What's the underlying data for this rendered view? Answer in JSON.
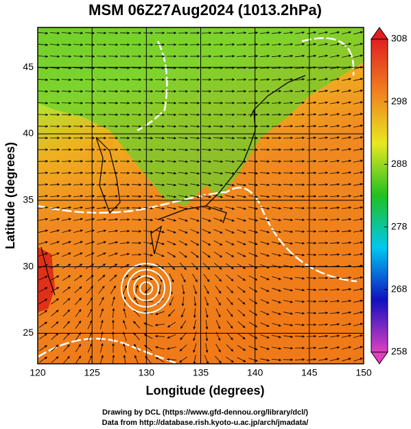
{
  "chart_data": {
    "type": "map",
    "title": "MSM 06Z27Aug2024 (1013.2hPa)",
    "xlabel": "Longitude (degrees)",
    "ylabel": "Latitude  (degrees)",
    "xlim": [
      120,
      150
    ],
    "xticks": [
      120,
      125,
      130,
      135,
      140,
      145,
      150
    ],
    "ylim": [
      22.7,
      48
    ],
    "yticks": [
      25,
      30,
      35,
      40,
      45
    ],
    "grid": true,
    "colorbar": {
      "lim": [
        258,
        308
      ],
      "ticks": [
        258,
        268,
        278,
        288,
        298,
        308
      ],
      "colors": [
        "#e040c0",
        "#1010c0",
        "#00c8f0",
        "#20c020",
        "#e8e820",
        "#f08020",
        "#e02020"
      ]
    },
    "footer": [
      "Drawing by DCL (https://www.gfd-dennou.org/library/dcl/)",
      "Data from http://database.rish.kyoto-u.ac.jp/arch/jmadata/"
    ]
  }
}
